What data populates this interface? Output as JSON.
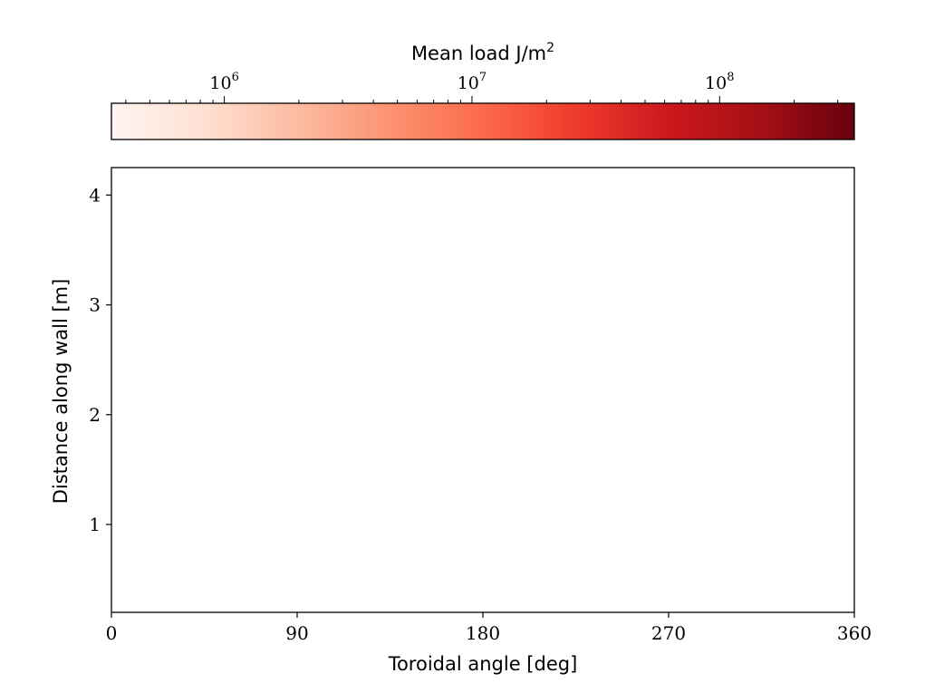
{
  "chart_data": {
    "type": "heatmap",
    "xlabel": "Toroidal angle [deg]",
    "ylabel": "Distance along wall [m]",
    "xlim": [
      0,
      360
    ],
    "ylim": [
      0.2,
      4.25
    ],
    "x_ticks": [
      "0",
      "90",
      "180",
      "270",
      "360"
    ],
    "y_ticks": [
      "1",
      "2",
      "3",
      "4"
    ],
    "colorbar": {
      "label": "Mean load J/m²",
      "scale": "log",
      "range": [
        350000,
        350000000
      ],
      "ticks": [
        {
          "value": 1000000,
          "base": "10",
          "exp": "6"
        },
        {
          "value": 10000000,
          "base": "10",
          "exp": "7"
        },
        {
          "value": 100000000,
          "base": "10",
          "exp": "8"
        }
      ],
      "colormap": "Reds"
    },
    "grid": false,
    "bin_width_deg": 4.5,
    "bin_height_m": 0.1,
    "cells_note": "each cell: [toroidal angle center deg, distance center m, mean load exponent log10(J/m2)]",
    "cells": []
  }
}
